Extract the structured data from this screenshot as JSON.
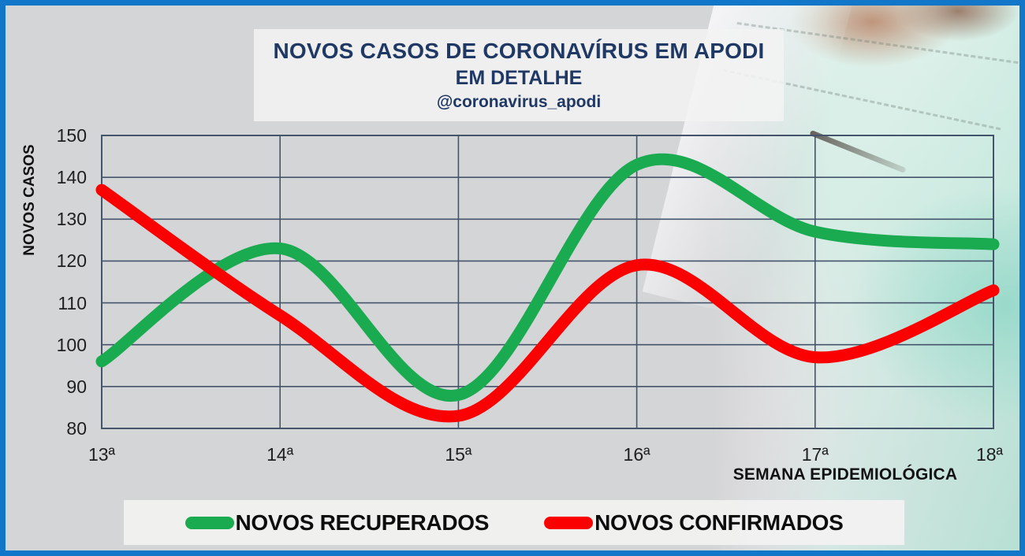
{
  "header": {
    "title": "NOVOS CASOS DE CORONAVÍRUS EM APODI",
    "subtitle": "EM DETALHE",
    "handle": "@coronavirus_apodi"
  },
  "chart_data": {
    "type": "line",
    "title": "NOVOS CASOS DE CORONAVÍRUS EM APODI — EM DETALHE",
    "xlabel": "SEMANA EPIDEMIOLÓGICA",
    "ylabel": "NOVOS CASOS",
    "categories": [
      "13ª",
      "14ª",
      "15ª",
      "16ª",
      "17ª",
      "18ª"
    ],
    "y_ticks": [
      150,
      140,
      130,
      120,
      110,
      100,
      90,
      80
    ],
    "ylim": [
      80,
      150
    ],
    "grid": true,
    "line_style": "smooth",
    "line_width": 15,
    "legend_position": "bottom",
    "series": [
      {
        "name": "NOVOS RECUPERADOS",
        "color": "#1aab50",
        "values": [
          96,
          123,
          88,
          143,
          127,
          124
        ]
      },
      {
        "name": "NOVOS CONFIRMADOS",
        "color": "#fb0000",
        "values": [
          137,
          107,
          83,
          119,
          97,
          113
        ]
      }
    ]
  },
  "colors": {
    "frame_border": "#1277c8",
    "background": "#d4d5d7",
    "gridline": "#44546a",
    "title_text": "#1f3864",
    "axis_text": "#1a1a1a",
    "title_box_bg": "#f3f3f3",
    "legend_bg": "#f1f1f0"
  }
}
